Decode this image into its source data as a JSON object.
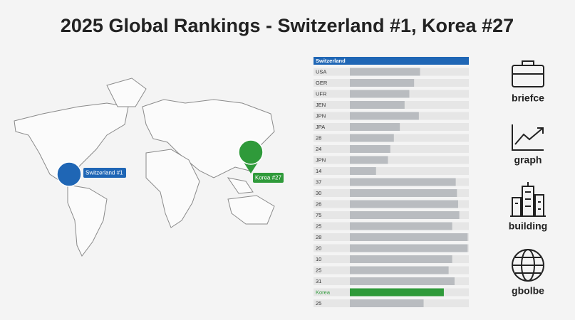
{
  "header": {
    "title": "2025 Global Rankings - Switzerland #1, Korea #27"
  },
  "map": {
    "markers": [
      {
        "label": "Switzerland #1",
        "color": "#1f66b5"
      },
      {
        "label": "Korea #27",
        "color": "#2f9a3a"
      }
    ]
  },
  "rankings": {
    "xlim": [
      0,
      100
    ],
    "track_color": "#e6e6e6",
    "bar_color": "#b9bcc0",
    "rows": [
      {
        "label": "Switzerland",
        "value": 100,
        "color": "#1f66b5",
        "highlight": "banner"
      },
      {
        "label": "USA",
        "value": 59
      },
      {
        "label": "GER",
        "value": 54
      },
      {
        "label": "UFR",
        "value": 50
      },
      {
        "label": "JEN",
        "value": 46
      },
      {
        "label": "JPN",
        "value": 58
      },
      {
        "label": "JPA",
        "value": 42
      },
      {
        "label": "28",
        "value": 37
      },
      {
        "label": "24",
        "value": 34
      },
      {
        "label": "JPN",
        "value": 32
      },
      {
        "label": "14",
        "value": 22
      },
      {
        "label": "37",
        "value": 89
      },
      {
        "label": "30",
        "value": 90
      },
      {
        "label": "26",
        "value": 91
      },
      {
        "label": "75",
        "value": 92
      },
      {
        "label": "25",
        "value": 86
      },
      {
        "label": "28",
        "value": 99
      },
      {
        "label": "20",
        "value": 99
      },
      {
        "label": "10",
        "value": 86
      },
      {
        "label": "25",
        "value": 83
      },
      {
        "label": "31",
        "value": 88
      },
      {
        "label": "Korea",
        "value": 79,
        "color": "#2f9a3a",
        "highlight": "text"
      },
      {
        "label": "25",
        "value": 62
      }
    ]
  },
  "icons": [
    {
      "label": "briefce"
    },
    {
      "label": "graph"
    },
    {
      "label": "building"
    },
    {
      "label": "gbolbe"
    }
  ]
}
